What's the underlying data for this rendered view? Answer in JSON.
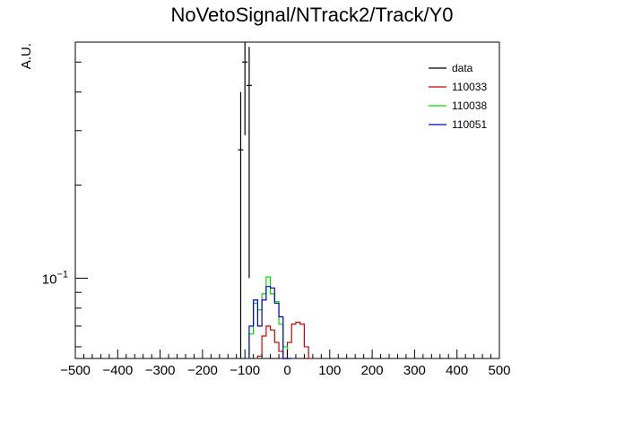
{
  "chart_data": {
    "type": "histogram",
    "title": "NoVetoSignal/NTrack2/Track/Y0",
    "xlabel": "",
    "ylabel": "A.U.",
    "xlim": [
      -500,
      500
    ],
    "ylim": [
      0.055,
      0.58
    ],
    "log_y": true,
    "grid": false,
    "legend_position": "top-right",
    "x_ticks": [
      -500,
      -400,
      -300,
      -200,
      -100,
      0,
      100,
      200,
      300,
      400,
      500
    ],
    "x_tick_labels": [
      "−500",
      "−400",
      "−300",
      "−200",
      "−100",
      "0",
      "100",
      "200",
      "300",
      "400",
      "500"
    ],
    "y_tick_label_base": "10",
    "y_tick_label_exp": "−1",
    "y_tick_value": 0.1,
    "bin_width": 10,
    "series": [
      {
        "name": "data",
        "color": "#000000",
        "style": "errorbar",
        "points": [
          {
            "x": -110,
            "y": 0.26,
            "err_low": 0.26,
            "err_high": 0.14
          },
          {
            "x": -100,
            "y": 0.5,
            "err_low": 0.21,
            "err_high": 0.14
          },
          {
            "x": -90,
            "y": 0.42,
            "err_low": 0.32,
            "err_high": 0.14
          }
        ]
      },
      {
        "name": "110033",
        "color": "#cc0000",
        "style": "step",
        "bins_low": [
          -70,
          -60,
          -50,
          -40,
          -30,
          -20,
          -10,
          0,
          10,
          20,
          30,
          40,
          50
        ],
        "values": [
          0.056,
          0.065,
          0.07,
          0.068,
          0.062,
          0.058,
          0.05,
          0.062,
          0.071,
          0.072,
          0.071,
          0.06,
          0.05
        ]
      },
      {
        "name": "110038",
        "color": "#00dd00",
        "style": "step",
        "bins_low": [
          -90,
          -80,
          -70,
          -60,
          -50,
          -40,
          -30,
          -20,
          -10,
          0
        ],
        "values": [
          0.066,
          0.083,
          0.079,
          0.089,
          0.101,
          0.089,
          0.084,
          0.071,
          0.06,
          0.05
        ]
      },
      {
        "name": "110051",
        "color": "#0000cc",
        "style": "step",
        "bins_low": [
          -90,
          -80,
          -70,
          -60,
          -50,
          -40,
          -30,
          -20,
          -10,
          0
        ],
        "values": [
          0.07,
          0.085,
          0.07,
          0.085,
          0.094,
          0.093,
          0.083,
          0.075,
          0.05,
          0.05
        ]
      }
    ]
  }
}
